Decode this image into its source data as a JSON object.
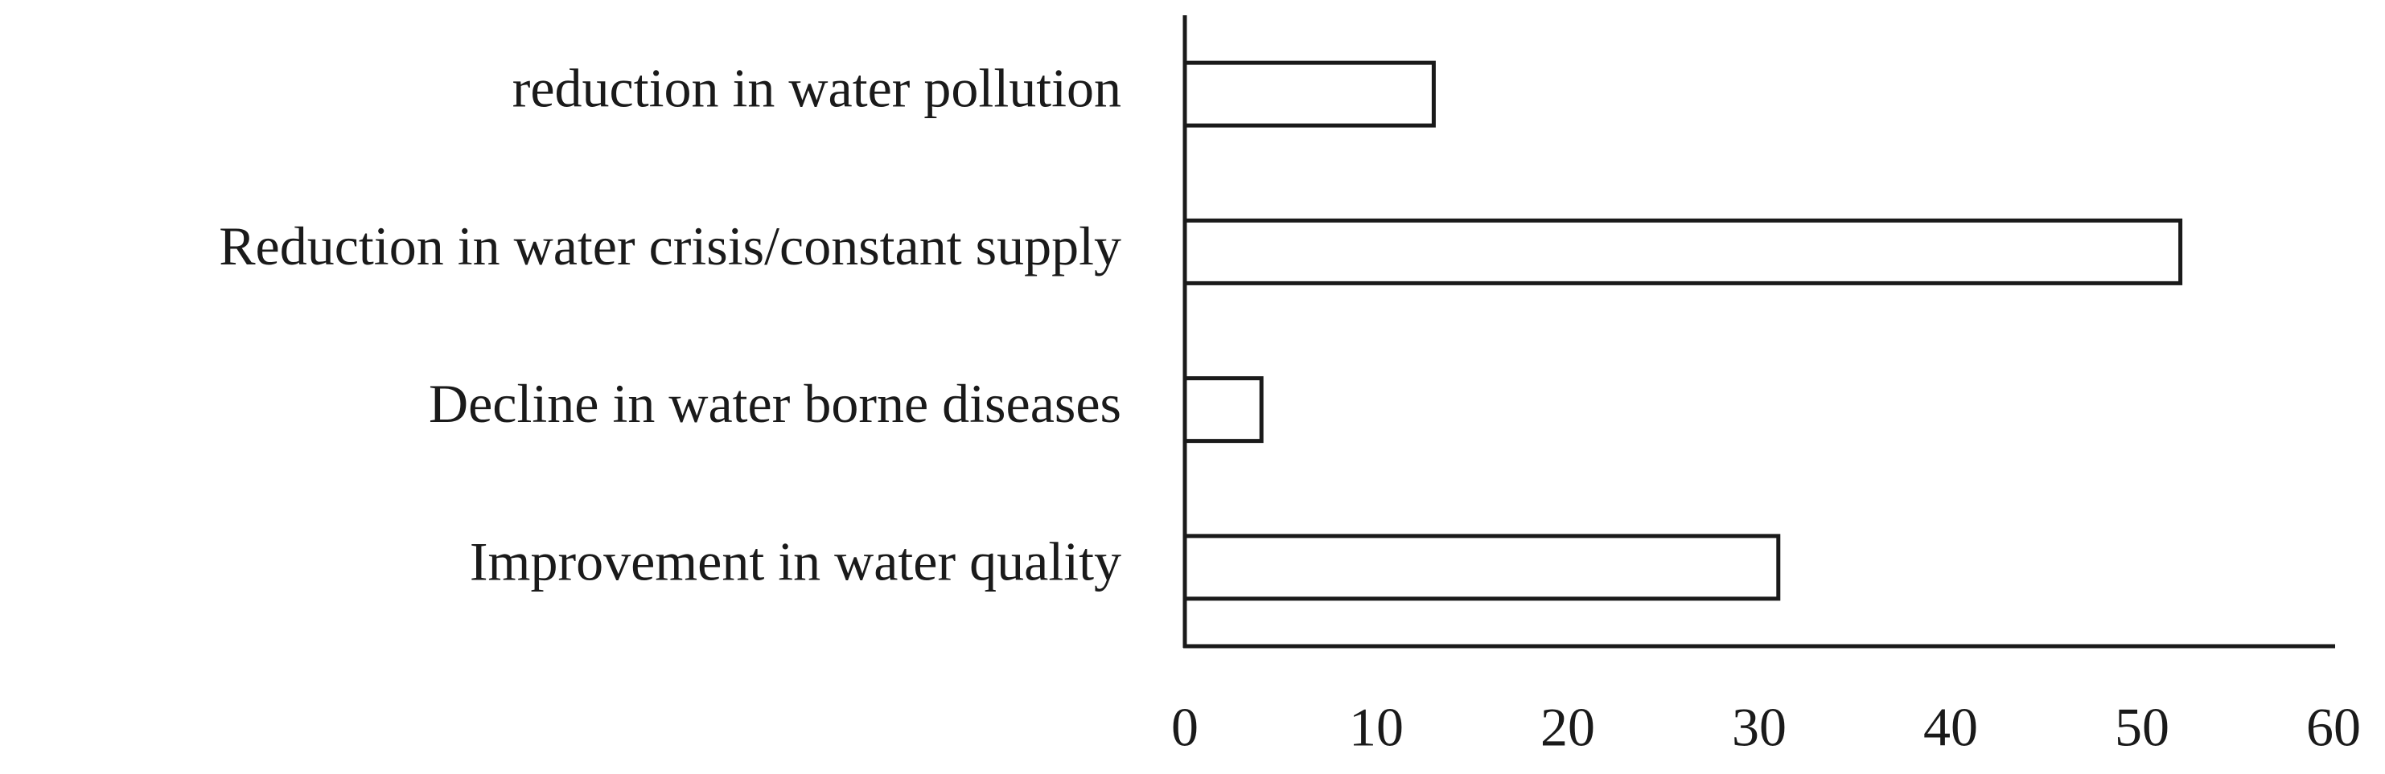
{
  "chart_data": {
    "type": "bar",
    "orientation": "horizontal",
    "categories": [
      "reduction in water pollution",
      "Reduction in water crisis/constant supply",
      "Decline in water borne diseases",
      "Improvement in water quality"
    ],
    "values": [
      13,
      52,
      4,
      31
    ],
    "color": "#ffffff",
    "xlim": [
      0,
      60
    ],
    "xticks": [
      0,
      10,
      20,
      30,
      40,
      50,
      60
    ],
    "grid": false
  }
}
